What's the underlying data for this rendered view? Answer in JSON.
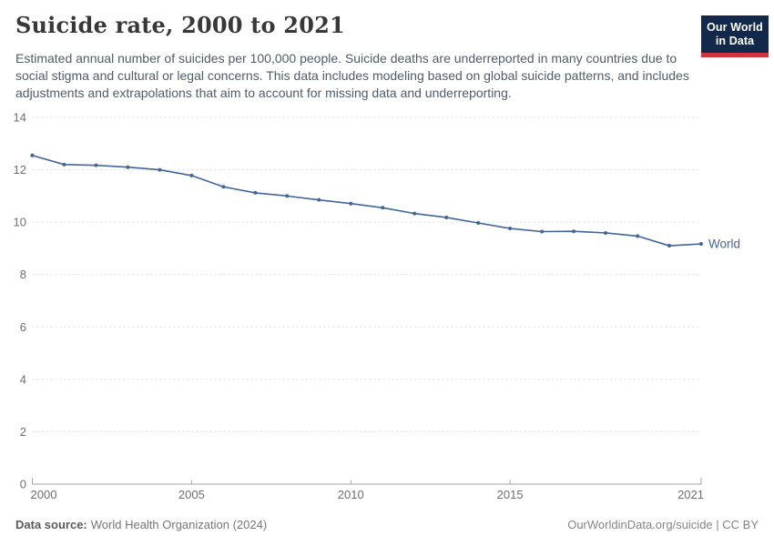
{
  "header": {
    "title": "Suicide rate, 2000 to 2021",
    "subtitle": "Estimated annual number of suicides per 100,000 people. Suicide deaths are underreported in many countries due to social stigma and cultural or legal concerns. This data includes modeling based on global suicide patterns, and includes adjustments and extrapolations that aim to account for missing data and underreporting.",
    "logo": {
      "line1": "Our World",
      "line2": "in Data"
    }
  },
  "colors": {
    "line": "#41659c",
    "logo_navy": "#13294b",
    "logo_red": "#d1353c",
    "grid": "#dddddd",
    "axis": "#a3a3a3",
    "tick_text": "#6e6e6e",
    "title_text": "#383838",
    "subtitle_text": "#4e5c6b",
    "footer_text": "#757575"
  },
  "chart_data": {
    "type": "line",
    "title": "Suicide rate, 2000 to 2021",
    "xlabel": "",
    "ylabel": "",
    "x": [
      2000,
      2001,
      2002,
      2003,
      2004,
      2005,
      2006,
      2007,
      2008,
      2009,
      2010,
      2011,
      2012,
      2013,
      2014,
      2015,
      2016,
      2017,
      2018,
      2019,
      2020,
      2021
    ],
    "series": [
      {
        "name": "World",
        "color": "#41659c",
        "values": [
          12.55,
          12.2,
          12.17,
          12.1,
          12.0,
          11.78,
          11.35,
          11.12,
          11.0,
          10.85,
          10.71,
          10.55,
          10.33,
          10.18,
          9.97,
          9.76,
          9.64,
          9.65,
          9.59,
          9.47,
          9.1,
          9.17
        ]
      }
    ],
    "x_tick_labels": [
      2000,
      2005,
      2010,
      2015,
      2021
    ],
    "y_ticks": [
      0,
      2,
      4,
      6,
      8,
      10,
      12,
      14
    ],
    "xlim": [
      2000,
      2021
    ],
    "ylim": [
      0,
      14
    ],
    "grid": "horizontal-dashed",
    "legend": "line-end-label"
  },
  "footer": {
    "datasource_label": "Data source:",
    "datasource_value": "World Health Organization (2024)",
    "credit": "OurWorldinData.org/suicide | CC BY"
  }
}
